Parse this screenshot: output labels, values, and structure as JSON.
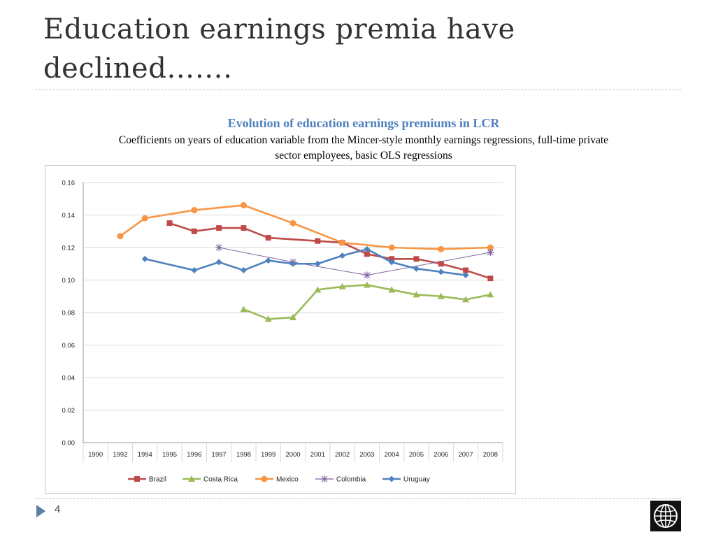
{
  "slide": {
    "title_line1": "Education earnings premia have",
    "title_line2": "declined…….",
    "page_number": "4"
  },
  "chart_heading": "Evolution of education earnings premiums in LCR",
  "chart_subheading_line1": "Coefficients on years of education variable from the Mincer-style monthly earnings regressions, full-time private",
  "chart_subheading_line2": "sector employees, basic OLS regressions",
  "colors": {
    "brazil": "#be4b48",
    "costa_rica": "#9bbb59",
    "mexico": "#f79646",
    "colombia": "#8064a2",
    "uruguay": "#4f81bd",
    "grid": "#d9d9d9",
    "accent": "#5b7fa8"
  },
  "chart_data": {
    "type": "line",
    "title": "",
    "xlabel": "",
    "ylabel": "",
    "x": [
      1990,
      1992,
      1994,
      1995,
      1996,
      1997,
      1998,
      1999,
      2000,
      2001,
      2002,
      2003,
      2004,
      2005,
      2006,
      2007,
      2008
    ],
    "x_tick_labels": [
      "1990",
      "1992",
      "1994",
      "1995",
      "1996",
      "1997",
      "1998",
      "1999",
      "2000",
      "2001",
      "2002",
      "2003",
      "2004",
      "2005",
      "2006",
      "2007",
      "2008"
    ],
    "y_ticks": [
      "0.00",
      "0.02",
      "0.04",
      "0.06",
      "0.08",
      "0.10",
      "0.12",
      "0.14",
      "0.16"
    ],
    "ylim": [
      0,
      0.16
    ],
    "grid": true,
    "legend_position": "bottom",
    "series": [
      {
        "name": "Brazil",
        "marker": "square",
        "color_key": "brazil",
        "points": [
          [
            1995,
            0.135
          ],
          [
            1996,
            0.13
          ],
          [
            1997,
            0.132
          ],
          [
            1998,
            0.132
          ],
          [
            1999,
            0.126
          ],
          [
            2001,
            0.124
          ],
          [
            2002,
            0.123
          ],
          [
            2003,
            0.116
          ],
          [
            2004,
            0.113
          ],
          [
            2005,
            0.113
          ],
          [
            2006,
            0.11
          ],
          [
            2007,
            0.106
          ],
          [
            2008,
            0.101
          ]
        ]
      },
      {
        "name": "Costa Rica",
        "marker": "triangle",
        "color_key": "costa_rica",
        "points": [
          [
            1998,
            0.082
          ],
          [
            1999,
            0.076
          ],
          [
            2000,
            0.077
          ],
          [
            2001,
            0.094
          ],
          [
            2002,
            0.096
          ],
          [
            2003,
            0.097
          ],
          [
            2004,
            0.094
          ],
          [
            2005,
            0.091
          ],
          [
            2006,
            0.09
          ],
          [
            2007,
            0.088
          ],
          [
            2008,
            0.091
          ]
        ]
      },
      {
        "name": "Mexico",
        "marker": "circle",
        "color_key": "mexico",
        "points": [
          [
            1992,
            0.127
          ],
          [
            1994,
            0.138
          ],
          [
            1996,
            0.143
          ],
          [
            1998,
            0.146
          ],
          [
            2000,
            0.135
          ],
          [
            2002,
            0.123
          ],
          [
            2004,
            0.12
          ],
          [
            2006,
            0.119
          ],
          [
            2008,
            0.12
          ]
        ]
      },
      {
        "name": "Colombia",
        "marker": "star",
        "color_key": "colombia",
        "points": [
          [
            1997,
            0.12
          ],
          [
            2000,
            0.111
          ],
          [
            2003,
            0.103
          ],
          [
            2008,
            0.117
          ]
        ]
      },
      {
        "name": "Uruguay",
        "marker": "diamond",
        "color_key": "uruguay",
        "points": [
          [
            1994,
            0.113
          ],
          [
            1996,
            0.106
          ],
          [
            1997,
            0.111
          ],
          [
            1998,
            0.106
          ],
          [
            1999,
            0.112
          ],
          [
            2000,
            0.11
          ],
          [
            2001,
            0.11
          ],
          [
            2002,
            0.115
          ],
          [
            2003,
            0.119
          ],
          [
            2004,
            0.111
          ],
          [
            2005,
            0.107
          ],
          [
            2006,
            0.105
          ],
          [
            2007,
            0.103
          ]
        ]
      }
    ]
  }
}
